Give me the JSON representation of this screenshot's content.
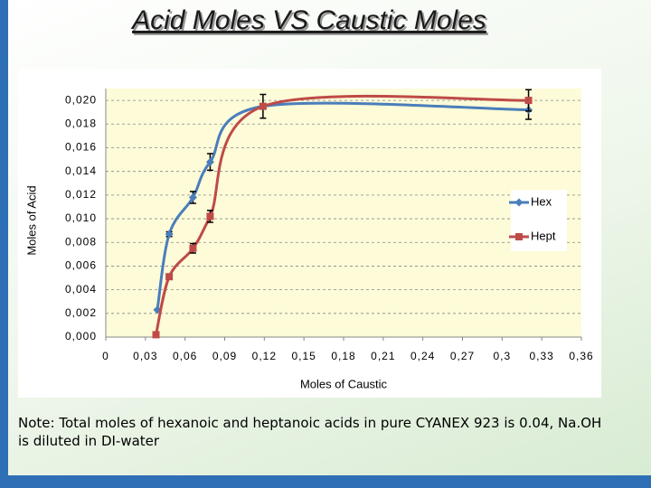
{
  "chart_data": {
    "type": "line",
    "title": "Acid Moles VS Caustic Moles",
    "x_label": "Moles of Caustic",
    "y_label": "Moles of Acid",
    "note": "Note: Total moles of hexanoic and heptanoic acids in pure CYANEX 923 is 0.04, Na.OH is diluted in DI-water",
    "xlim": [
      0,
      0.36
    ],
    "ylim": [
      0,
      0.021
    ],
    "xticks": [
      0,
      {
        "value": 0.03,
        "label": "0,03"
      },
      {
        "value": 0.06,
        "label": "0,06"
      },
      {
        "value": 0.09,
        "label": "0,09"
      },
      {
        "value": 0.12,
        "label": "0,12"
      },
      {
        "value": 0.15,
        "label": "0,15"
      },
      {
        "value": 0.18,
        "label": "0,18"
      },
      {
        "value": 0.21,
        "label": "0,21"
      },
      {
        "value": 0.24,
        "label": "0,24"
      },
      {
        "value": 0.27,
        "label": "0,27"
      },
      {
        "value": 0.3,
        "label": "0,3"
      },
      {
        "value": 0.33,
        "label": "0,33"
      },
      {
        "value": 0.36,
        "label": "0,36"
      }
    ],
    "yticks": [
      {
        "value": 0,
        "label": "0,000"
      },
      {
        "value": 0.002,
        "label": "0,002"
      },
      {
        "value": 0.004,
        "label": "0,004"
      },
      {
        "value": 0.006,
        "label": "0,006"
      },
      {
        "value": 0.008,
        "label": "0,008"
      },
      {
        "value": 0.01,
        "label": "0,010"
      },
      {
        "value": 0.012,
        "label": "0,012"
      },
      {
        "value": 0.014,
        "label": "0,014"
      },
      {
        "value": 0.016,
        "label": "0,016"
      },
      {
        "value": 0.018,
        "label": "0,018"
      },
      {
        "value": 0.02,
        "label": "0,020"
      }
    ],
    "grid": true,
    "legend": "right",
    "smooth": true,
    "series": [
      {
        "name": "Hex",
        "color": "#4a7ebb",
        "marker": "diamond",
        "x": [
          0.039,
          0.048,
          0.066,
          0.079,
          0.119,
          0.32
        ],
        "values": [
          0.0023,
          0.0087,
          0.0118,
          0.0148,
          0.0195,
          0.0192
        ],
        "errors": [
          null,
          0.0002,
          0.0005,
          0.0007,
          null,
          0.0008
        ]
      },
      {
        "name": "Hept",
        "color": "#be4b48",
        "marker": "square",
        "x": [
          0.038,
          0.048,
          0.066,
          0.079,
          0.119,
          0.32
        ],
        "values": [
          0.0002,
          0.0051,
          0.0075,
          0.0102,
          0.0195,
          0.02
        ],
        "errors": [
          null,
          null,
          0.0004,
          0.0005,
          0.001,
          0.0009
        ]
      }
    ]
  }
}
